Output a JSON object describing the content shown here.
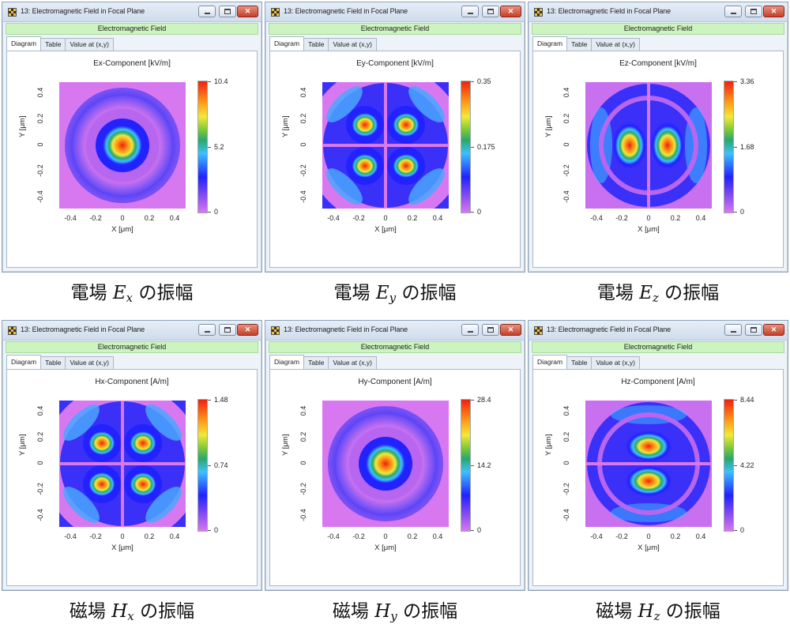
{
  "panels": [
    {
      "window_title": "13: Electromagnetic Field in Focal Plane",
      "header": "Electromagnetic Field",
      "tabs": [
        "Diagram",
        "Table",
        "Value at (x,y)"
      ],
      "plot_title": "Ex-Component  [kV/m]",
      "cbar": [
        "10.4",
        "5.2",
        "0"
      ],
      "xticks": [
        "-0.4",
        "-0.2",
        "0",
        "0.2",
        "0.4"
      ],
      "yticks": [
        "0.4",
        "0.2",
        "0",
        "-0.2",
        "-0.4"
      ],
      "xlabel": "X [μm]",
      "ylabel": "Y [μm]",
      "caption_prefix": "電場",
      "caption_symbol": "E",
      "caption_sub": "x",
      "caption_suffix": "の振幅",
      "pattern": "center"
    },
    {
      "window_title": "13: Electromagnetic Field in Focal Plane",
      "header": "Electromagnetic Field",
      "tabs": [
        "Diagram",
        "Table",
        "Value at (x,y)"
      ],
      "plot_title": "Ey-Component  [kV/m]",
      "cbar": [
        "0.35",
        "0.175",
        "0"
      ],
      "xticks": [
        "-0.4",
        "-0.2",
        "0",
        "0.2",
        "0.4"
      ],
      "yticks": [
        "0.4",
        "0.2",
        "0",
        "-0.2",
        "-0.4"
      ],
      "xlabel": "X [μm]",
      "ylabel": "Y [μm]",
      "caption_prefix": "電場",
      "caption_symbol": "E",
      "caption_sub": "y",
      "caption_suffix": "の振幅",
      "pattern": "quad"
    },
    {
      "window_title": "13: Electromagnetic Field in Focal Plane",
      "header": "Electromagnetic Field",
      "tabs": [
        "Diagram",
        "Table",
        "Value at (x,y)"
      ],
      "plot_title": "Ez-Component  [kV/m]",
      "cbar": [
        "3.36",
        "1.68",
        "0"
      ],
      "xticks": [
        "-0.4",
        "-0.2",
        "0",
        "0.2",
        "0.4"
      ],
      "yticks": [
        "0.4",
        "0.2",
        "0",
        "-0.2",
        "-0.4"
      ],
      "xlabel": "X [μm]",
      "ylabel": "Y [μm]",
      "caption_prefix": "電場",
      "caption_symbol": "E",
      "caption_sub": "z",
      "caption_suffix": "の振幅",
      "pattern": "horiz"
    },
    {
      "window_title": "13: Electromagnetic Field in Focal Plane",
      "header": "Electromagnetic Field",
      "tabs": [
        "Diagram",
        "Table",
        "Value at (x,y)"
      ],
      "plot_title": "Hx-Component  [A/m]",
      "cbar": [
        "1.48",
        "0.74",
        "0"
      ],
      "xticks": [
        "-0.4",
        "-0.2",
        "0",
        "0.2",
        "0.4"
      ],
      "yticks": [
        "0.4",
        "0.2",
        "0",
        "-0.2",
        "-0.4"
      ],
      "xlabel": "X [μm]",
      "ylabel": "Y [μm]",
      "caption_prefix": "磁場",
      "caption_symbol": "H",
      "caption_sub": "x",
      "caption_suffix": "の振幅",
      "pattern": "quad"
    },
    {
      "window_title": "13: Electromagnetic Field in Focal Plane",
      "header": "Electromagnetic Field",
      "tabs": [
        "Diagram",
        "Table",
        "Value at (x,y)"
      ],
      "plot_title": "Hy-Component  [A/m]",
      "cbar": [
        "28.4",
        "14.2",
        "0"
      ],
      "xticks": [
        "-0.4",
        "-0.2",
        "0",
        "0.2",
        "0.4"
      ],
      "yticks": [
        "0.4",
        "0.2",
        "0",
        "-0.2",
        "-0.4"
      ],
      "xlabel": "X [μm]",
      "ylabel": "Y [μm]",
      "caption_prefix": "磁場",
      "caption_symbol": "H",
      "caption_sub": "y",
      "caption_suffix": "の振幅",
      "pattern": "center"
    },
    {
      "window_title": "13: Electromagnetic Field in Focal Plane",
      "header": "Electromagnetic Field",
      "tabs": [
        "Diagram",
        "Table",
        "Value at (x,y)"
      ],
      "plot_title": "Hz-Component  [A/m]",
      "cbar": [
        "8.44",
        "4.22",
        "0"
      ],
      "xticks": [
        "-0.4",
        "-0.2",
        "0",
        "0.2",
        "0.4"
      ],
      "yticks": [
        "0.4",
        "0.2",
        "0",
        "-0.2",
        "-0.4"
      ],
      "xlabel": "X [μm]",
      "ylabel": "Y [μm]",
      "caption_prefix": "磁場",
      "caption_symbol": "H",
      "caption_sub": "z",
      "caption_suffix": "の振幅",
      "pattern": "vert"
    }
  ],
  "colors": {
    "header_green": "#cdf3c0",
    "background_low": "#d878f0",
    "ring_blue": "#2222ff",
    "peak_red": "#f02010"
  }
}
